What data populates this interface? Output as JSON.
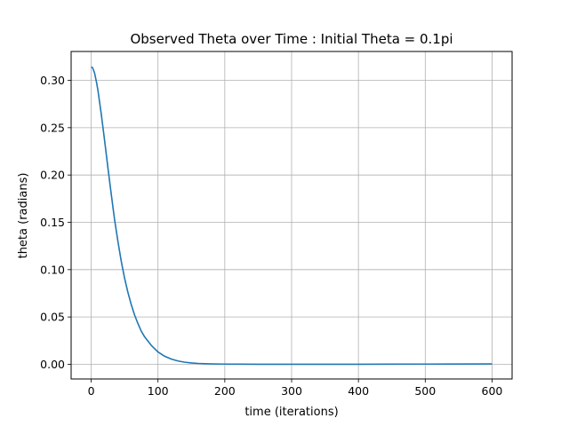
{
  "chart_data": {
    "type": "line",
    "title": "Observed Theta over Time : Initial Theta = 0.1pi",
    "xlabel": "time (iterations)",
    "ylabel": "theta (radians)",
    "xlim": [
      -30,
      630
    ],
    "ylim": [
      -0.0155,
      0.3305
    ],
    "xticks": [
      0,
      100,
      200,
      300,
      400,
      500,
      600
    ],
    "xtick_labels": [
      "0",
      "100",
      "200",
      "300",
      "400",
      "500",
      "600"
    ],
    "yticks": [
      0.0,
      0.05,
      0.1,
      0.15,
      0.2,
      0.25,
      0.3
    ],
    "ytick_labels": [
      "0.00",
      "0.05",
      "0.10",
      "0.15",
      "0.20",
      "0.25",
      "0.30"
    ],
    "grid": true,
    "legend": null,
    "series": [
      {
        "color": "#1f77b4",
        "x": [
          0,
          2,
          5,
          8,
          10,
          15,
          20,
          25,
          30,
          35,
          40,
          45,
          50,
          55,
          60,
          65,
          70,
          75,
          80,
          90,
          100,
          110,
          120,
          130,
          140,
          150,
          160,
          170,
          180,
          200,
          220,
          250,
          300,
          350,
          400,
          450,
          500,
          550,
          600
        ],
        "y": [
          0.314,
          0.3135,
          0.308,
          0.298,
          0.29,
          0.265,
          0.237,
          0.208,
          0.18,
          0.153,
          0.13,
          0.109,
          0.091,
          0.076,
          0.063,
          0.052,
          0.043,
          0.035,
          0.029,
          0.02,
          0.013,
          0.0085,
          0.0055,
          0.0035,
          0.0022,
          0.0014,
          0.0009,
          0.0006,
          0.0004,
          0.0002,
          0.0001,
          0.0,
          0.0,
          0.0,
          0.0,
          0.0001,
          0.0002,
          0.0003,
          0.0004
        ]
      }
    ]
  }
}
